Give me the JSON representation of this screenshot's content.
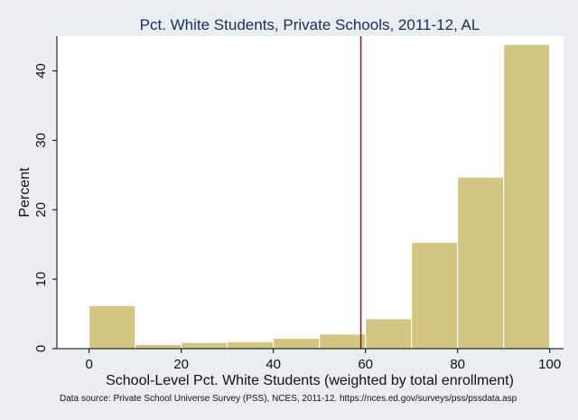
{
  "chart_data": {
    "type": "bar",
    "title": "Pct. White Students, Private Schools, 2011-12, AL",
    "xlabel": "School-Level Pct. White Students (weighted by total enrollment)",
    "ylabel": "Percent",
    "note": "Data source: Private School Universe Survey (PSS), NCES, 2011-12. https://nces.ed.gov/surveys/pss/pssdata.asp",
    "bin_edges": [
      0,
      10,
      20,
      30,
      40,
      50,
      60,
      70,
      80,
      90,
      100
    ],
    "values": [
      6.2,
      0.6,
      0.9,
      1.0,
      1.5,
      2.1,
      4.3,
      15.3,
      24.7,
      43.8
    ],
    "reference_line_x": 59,
    "xlim": [
      -7,
      103
    ],
    "ylim": [
      0,
      45
    ],
    "x_ticks": [
      0,
      20,
      40,
      60,
      80,
      100
    ],
    "y_ticks": [
      0,
      10,
      20,
      30,
      40
    ],
    "bar_color": "#d2c682",
    "bar_edge_color": "#ffffff",
    "reference_line_color": "#8b1a1a",
    "plot_background": "#ffffff",
    "outer_background": "#e9eef2",
    "grid": false,
    "legend": "none"
  }
}
